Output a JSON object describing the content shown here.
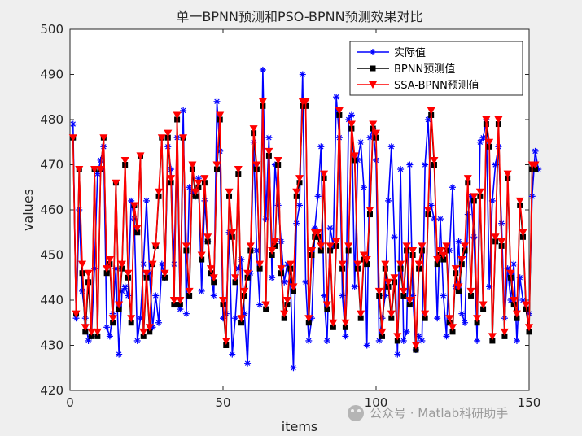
{
  "chart_data": {
    "type": "line",
    "title": "单一BPNN预测和PSO-BPNN预测效果对比",
    "xlabel": "items",
    "ylabel": "values",
    "xlim": [
      0,
      150
    ],
    "ylim": [
      420,
      500
    ],
    "xticks": [
      "0",
      "50",
      "100",
      "150"
    ],
    "yticks": [
      "420",
      "430",
      "440",
      "450",
      "460",
      "470",
      "480",
      "490",
      "500"
    ],
    "legend_position": "top-right",
    "series": [
      {
        "name": "实际值",
        "color": "#0000ff",
        "marker": "asterisk",
        "values": [
          479,
          436,
          460,
          442,
          436,
          431,
          432,
          447,
          468,
          471,
          474,
          434,
          432,
          437,
          447,
          428,
          442,
          443,
          441,
          462,
          458,
          431,
          436,
          448,
          462,
          446,
          434,
          441,
          435,
          448,
          445,
          474,
          469,
          448,
          476,
          438,
          482,
          437,
          465,
          464,
          463,
          467,
          442,
          462,
          453,
          446,
          441,
          484,
          473,
          436,
          437,
          455,
          428,
          436,
          447,
          449,
          437,
          426,
          446,
          475,
          451,
          439,
          491,
          458,
          476,
          445,
          470,
          461,
          453,
          444,
          448,
          444,
          425,
          457,
          461,
          490,
          444,
          431,
          436,
          456,
          463,
          474,
          441,
          431,
          456,
          452,
          485,
          476,
          441,
          432,
          480,
          481,
          443,
          471,
          475,
          465,
          430,
          476,
          478,
          471,
          431,
          436,
          441,
          462,
          474,
          454,
          428,
          469,
          431,
          433,
          470,
          441,
          429,
          432,
          431,
          470,
          480,
          461,
          458,
          436,
          458,
          441,
          432,
          451,
          465,
          443,
          453,
          437,
          435,
          459,
          463,
          454,
          431,
          475,
          476,
          480,
          443,
          462,
          470,
          474,
          457,
          436,
          447,
          440,
          448,
          431,
          445,
          440,
          438,
          437,
          463,
          473,
          469
        ]
      },
      {
        "name": "BPNN预测值",
        "color": "#000000",
        "marker": "square",
        "values": [
          476,
          437,
          469,
          446,
          433,
          444,
          432,
          469,
          432,
          469,
          476,
          446,
          448,
          435,
          466,
          438,
          447,
          470,
          445,
          435,
          461,
          455,
          472,
          432,
          445,
          433,
          448,
          452,
          463,
          476,
          445,
          476,
          466,
          439,
          480,
          439,
          476,
          451,
          441,
          469,
          463,
          465,
          449,
          466,
          453,
          446,
          444,
          469,
          480,
          439,
          430,
          463,
          454,
          444,
          468,
          435,
          441,
          445,
          451,
          477,
          469,
          447,
          483,
          438,
          472,
          450,
          452,
          470,
          446,
          436,
          439,
          447,
          442,
          463,
          466,
          483,
          483,
          435,
          450,
          454,
          454,
          451,
          467,
          438,
          451,
          434,
          452,
          481,
          447,
          434,
          451,
          478,
          471,
          447,
          436,
          449,
          448,
          459,
          478,
          476,
          441,
          432,
          447,
          443,
          436,
          444,
          431,
          447,
          441,
          451,
          439,
          450,
          429,
          447,
          451,
          436,
          459,
          481,
          470,
          448,
          450,
          449,
          451,
          435,
          433,
          446,
          442,
          448,
          451,
          466,
          441,
          462,
          435,
          463,
          438,
          479,
          474,
          431,
          453,
          479,
          452,
          432,
          467,
          445,
          439,
          436,
          461,
          454,
          438,
          433,
          469,
          469
        ]
      },
      {
        "name": "SSA-BPNN预测值",
        "color": "#ff0000",
        "marker": "triangle-down",
        "values": [
          476,
          437,
          469,
          448,
          434,
          446,
          433,
          469,
          433,
          469,
          476,
          447,
          449,
          436,
          466,
          439,
          448,
          471,
          446,
          436,
          461,
          456,
          472,
          433,
          446,
          434,
          448,
          452,
          464,
          476,
          446,
          477,
          467,
          440,
          481,
          440,
          476,
          452,
          442,
          470,
          464,
          466,
          450,
          467,
          454,
          447,
          445,
          470,
          481,
          440,
          431,
          464,
          455,
          445,
          469,
          436,
          442,
          446,
          452,
          478,
          470,
          448,
          484,
          439,
          473,
          451,
          453,
          471,
          447,
          437,
          440,
          448,
          443,
          464,
          467,
          484,
          484,
          436,
          451,
          455,
          455,
          452,
          468,
          439,
          452,
          435,
          453,
          482,
          448,
          435,
          452,
          479,
          472,
          448,
          437,
          450,
          449,
          460,
          479,
          477,
          442,
          433,
          448,
          444,
          437,
          445,
          432,
          448,
          442,
          452,
          440,
          451,
          430,
          448,
          452,
          437,
          460,
          482,
          471,
          449,
          451,
          450,
          452,
          436,
          434,
          447,
          443,
          449,
          452,
          467,
          442,
          463,
          436,
          464,
          439,
          480,
          475,
          432,
          454,
          480,
          453,
          433,
          468,
          446,
          440,
          437,
          462,
          455,
          439,
          434,
          470,
          470
        ]
      }
    ]
  },
  "watermark": {
    "text": "公众号 · Matlab科研助手"
  }
}
